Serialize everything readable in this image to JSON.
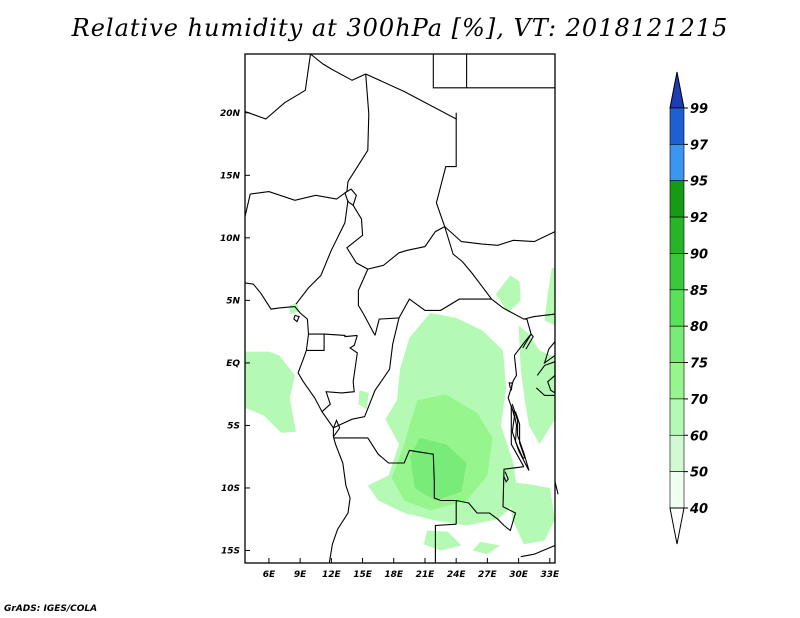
{
  "title": "Relative humidity at 300hPa [%], VT: 2018121215",
  "credit": "GrADS: IGES/COLA",
  "map": {
    "lon_range": [
      3.7,
      33.5
    ],
    "lat_range": [
      -16.0,
      24.7
    ],
    "lon_ticks": [
      "6E",
      "9E",
      "12E",
      "15E",
      "18E",
      "21E",
      "24E",
      "27E",
      "30E",
      "33E"
    ],
    "lon_tick_values": [
      6,
      9,
      12,
      15,
      18,
      21,
      24,
      27,
      30,
      33
    ],
    "lat_ticks": [
      "20N",
      "15N",
      "10N",
      "5N",
      "EQ",
      "5S",
      "10S",
      "15S"
    ],
    "lat_tick_values": [
      20,
      15,
      10,
      5,
      0,
      -5,
      -10,
      -15
    ]
  },
  "colorbar": {
    "labels": [
      "99",
      "97",
      "95",
      "92",
      "90",
      "85",
      "80",
      "75",
      "70",
      "60",
      "50",
      "40"
    ],
    "colors": [
      "#1e5fd2",
      "#3c96f0",
      "#159b15",
      "#28b428",
      "#3cc83c",
      "#5ae15a",
      "#78eb78",
      "#96f58c",
      "#b4fab4",
      "#d2fad2",
      "#f0fff0"
    ],
    "upper_arrow_color": "#1e3cb4",
    "lower_arrow_color": "#ffffff"
  },
  "humidity_colors": {
    "light": "#b4fab4",
    "mid": "#96f58c",
    "strong": "#78eb78"
  }
}
